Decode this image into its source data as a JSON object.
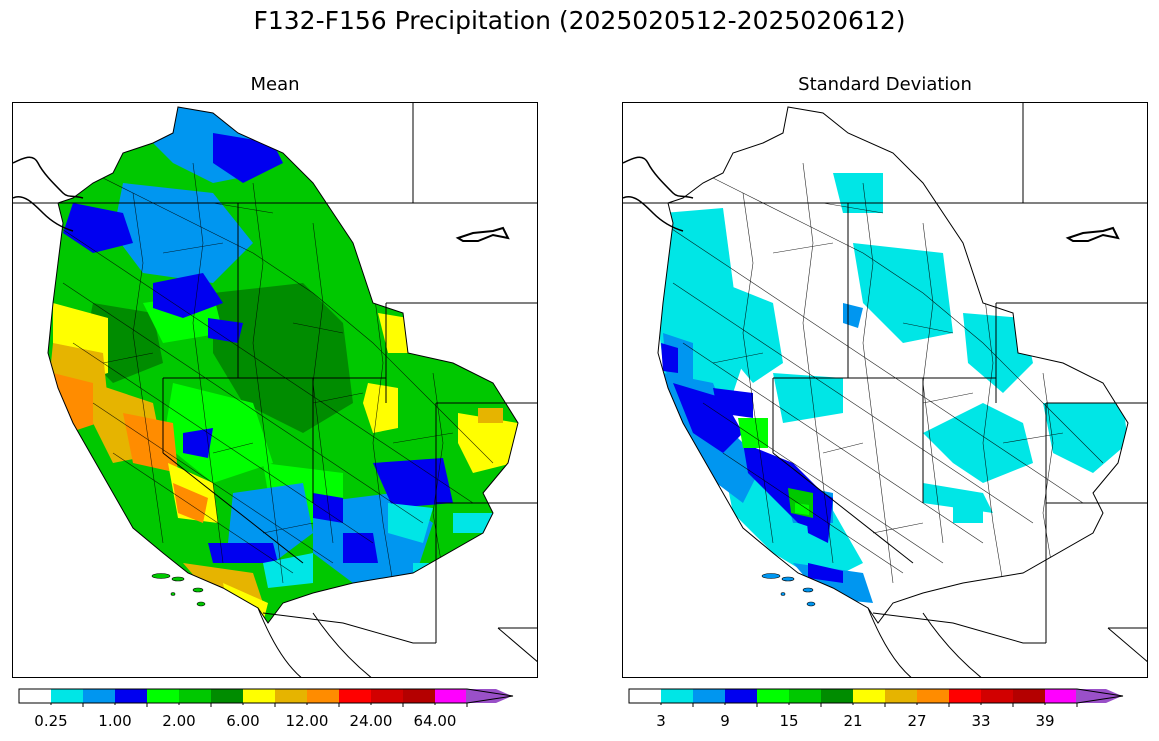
{
  "title": "F132-F156 Precipitation (2025020512-2025020612)",
  "panels": [
    {
      "subtitle": "Mean",
      "colorbar": {
        "colors": [
          "#ffffff",
          "#00e6e6",
          "#0096f0",
          "#0000f0",
          "#00ff00",
          "#00c800",
          "#008c00",
          "#ffff00",
          "#e6b400",
          "#ff8c00",
          "#ff0000",
          "#d20000",
          "#b40000",
          "#ff00ff",
          "#9a50c8"
        ],
        "labels": [
          "0.25",
          "1.00",
          "2.00",
          "6.00",
          "12.00",
          "24.00",
          "64.00"
        ]
      }
    },
    {
      "subtitle": "Standard Deviation",
      "colorbar": {
        "colors": [
          "#ffffff",
          "#00e6e6",
          "#0096f0",
          "#0000f0",
          "#00ff00",
          "#00c800",
          "#008c00",
          "#ffff00",
          "#e6b400",
          "#ff8c00",
          "#ff0000",
          "#d20000",
          "#b40000",
          "#ff00ff",
          "#9a50c8"
        ],
        "labels": [
          "3",
          "9",
          "15",
          "21",
          "27",
          "33",
          "39"
        ]
      }
    }
  ]
}
